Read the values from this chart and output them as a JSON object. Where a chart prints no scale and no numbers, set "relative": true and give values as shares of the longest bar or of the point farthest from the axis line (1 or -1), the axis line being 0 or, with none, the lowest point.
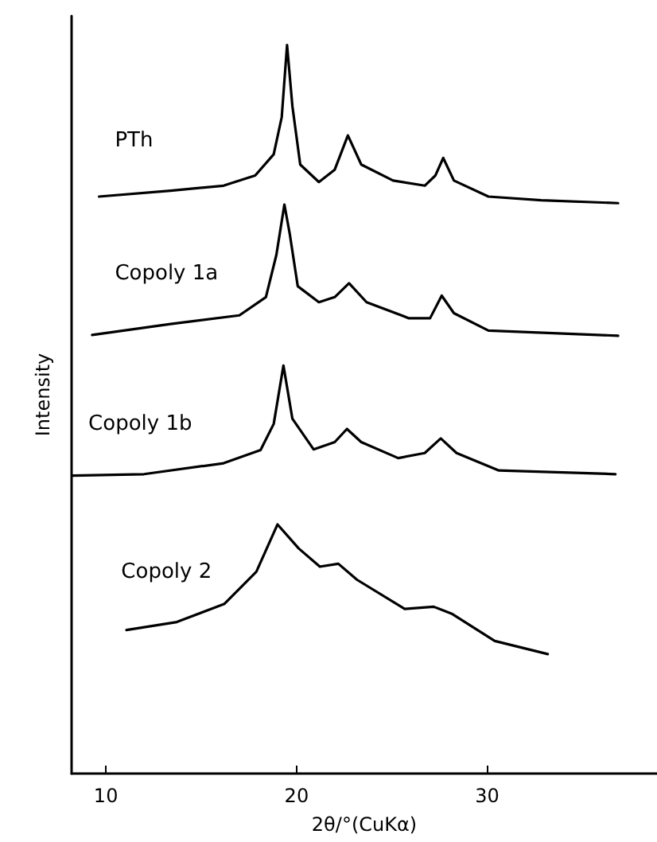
{
  "chart_data": {
    "type": "line",
    "relative": true,
    "xlabel": "2θ/°(CuKα)",
    "ylabel": "Intensity",
    "xlim": [
      8.2,
      38.9
    ],
    "xticks": [
      10,
      20,
      30
    ],
    "grid": false,
    "legend": false,
    "marker": "none",
    "line_style": "solid",
    "series": [
      {
        "name": "PTh",
        "color": "#000000",
        "x": [
          9.64,
          13.39,
          16.17,
          17.83,
          18.8,
          19.22,
          19.5,
          19.78,
          20.19,
          21.17,
          22.0,
          22.69,
          23.39,
          25.06,
          26.72,
          27.28,
          27.69,
          28.25,
          30.06,
          32.83,
          36.86
        ],
        "values": [
          0.792,
          0.8,
          0.807,
          0.821,
          0.85,
          0.901,
          1,
          0.916,
          0.836,
          0.812,
          0.829,
          0.876,
          0.836,
          0.814,
          0.807,
          0.821,
          0.845,
          0.814,
          0.792,
          0.787,
          0.783
        ]
      },
      {
        "name": "Copoly 1a",
        "color": "#000000",
        "x": [
          9.28,
          13.39,
          17.0,
          18.39,
          18.94,
          19.36,
          19.64,
          20.06,
          21.17,
          22.0,
          22.75,
          23.67,
          25.89,
          27.0,
          27.61,
          28.25,
          30.06,
          36.86
        ],
        "values": [
          0.602,
          0.617,
          0.629,
          0.654,
          0.712,
          0.781,
          0.741,
          0.669,
          0.647,
          0.654,
          0.673,
          0.647,
          0.625,
          0.625,
          0.656,
          0.632,
          0.608,
          0.601
        ]
      },
      {
        "name": "Copoly 1b",
        "color": "#000000",
        "x": [
          8.25,
          12.0,
          16.17,
          18.11,
          18.8,
          19.31,
          19.78,
          20.89,
          22.0,
          22.64,
          23.39,
          25.33,
          26.72,
          27.56,
          28.39,
          30.61,
          36.72
        ],
        "values": [
          0.409,
          0.411,
          0.426,
          0.444,
          0.48,
          0.56,
          0.487,
          0.445,
          0.455,
          0.473,
          0.455,
          0.433,
          0.44,
          0.46,
          0.44,
          0.416,
          0.411
        ]
      },
      {
        "name": "Copoly 2",
        "color": "#000000",
        "x": [
          11.08,
          13.72,
          16.22,
          17.89,
          19.0,
          20.11,
          21.22,
          22.19,
          23.17,
          25.67,
          27.19,
          28.17,
          30.39,
          33.17
        ],
        "values": [
          0.197,
          0.208,
          0.233,
          0.277,
          0.342,
          0.309,
          0.284,
          0.288,
          0.266,
          0.226,
          0.229,
          0.219,
          0.182,
          0.164
        ]
      }
    ]
  }
}
